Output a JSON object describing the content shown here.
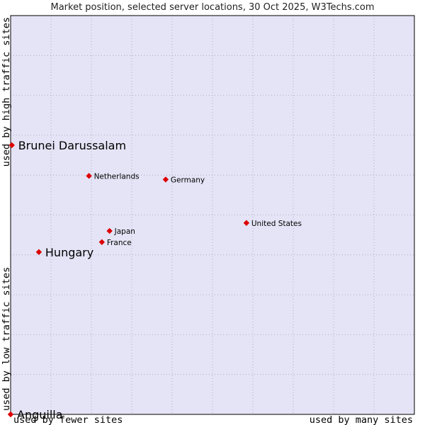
{
  "chart_data": {
    "type": "scatter",
    "title": "Market position, selected server locations, 30 Oct 2025, W3Techs.com",
    "xlabel_left": "used by fewer sites",
    "xlabel_right": "used by many sites",
    "ylabel_bottom": "used by low traffic sites",
    "ylabel_top": "used by high traffic sites",
    "xlim": [
      0,
      10
    ],
    "ylim": [
      0,
      10
    ],
    "grid": true,
    "colors": {
      "plot_background": "#e4e4f6",
      "grid": "#a0a0c0",
      "point": "#dd0000",
      "frame": "#000000"
    },
    "points": [
      {
        "name": "Brunei Darussalam",
        "x": 0.03,
        "y": 6.75,
        "emphasis": true
      },
      {
        "name": "Netherlands",
        "x": 1.94,
        "y": 5.98,
        "emphasis": false
      },
      {
        "name": "Germany",
        "x": 3.84,
        "y": 5.89,
        "emphasis": false
      },
      {
        "name": "United States",
        "x": 5.84,
        "y": 4.8,
        "emphasis": false
      },
      {
        "name": "Japan",
        "x": 2.45,
        "y": 4.6,
        "emphasis": false
      },
      {
        "name": "France",
        "x": 2.26,
        "y": 4.32,
        "emphasis": false
      },
      {
        "name": "Hungary",
        "x": 0.7,
        "y": 4.07,
        "emphasis": true
      },
      {
        "name": "Anguilla",
        "x": 0.0,
        "y": 0.0,
        "emphasis": true
      }
    ]
  }
}
